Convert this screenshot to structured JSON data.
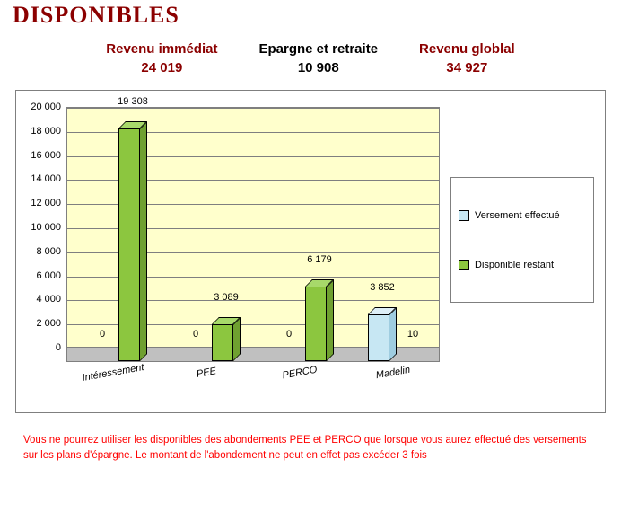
{
  "title": "DISPONIBLES",
  "summary": [
    {
      "label": "Revenu immédiat",
      "value": "24 019",
      "color_class": "red"
    },
    {
      "label": "Epargne et retraite",
      "value": "10 908",
      "color_class": "black"
    },
    {
      "label": "Revenu globlal",
      "value": "34 927",
      "color_class": "red"
    }
  ],
  "chart": {
    "type": "bar",
    "ylim": [
      0,
      20000
    ],
    "ytick_step": 2000,
    "yticks": [
      "0",
      "2 000",
      "4 000",
      "6 000",
      "8 000",
      "10 000",
      "12 000",
      "14 000",
      "16 000",
      "18 000",
      "20 000"
    ],
    "plot_bg": "#ffffcc",
    "grid_color": "#7f7f7f",
    "floor_color": "#c0c0c0",
    "categories": [
      "Intéressement",
      "PEE",
      "PERCO",
      "Madelin"
    ],
    "series": [
      {
        "name": "Versement effectué",
        "color": "#c7e7f3",
        "side_color": "#9fcde0",
        "top_color": "#deeff7",
        "values": [
          0,
          0,
          0,
          3852
        ],
        "labels": [
          "0",
          "0",
          "0",
          "3 852"
        ]
      },
      {
        "name": "Disponible restant",
        "color": "#8cc63f",
        "side_color": "#6fa030",
        "top_color": "#a7d96a",
        "values": [
          19308,
          3089,
          6179,
          10
        ],
        "labels": [
          "19 308",
          "3 089",
          "6 179",
          "10"
        ]
      }
    ],
    "label_fontsize": 11,
    "xlabel_fontsize": 11
  },
  "legend": {
    "items": [
      {
        "swatch": "#c7e7f3",
        "text": "Versement effectué"
      },
      {
        "swatch": "#8cc63f",
        "text": "Disponible restant"
      }
    ]
  },
  "note": "Vous ne pourrez utiliser les disponibles des abondements PEE et PERCO que lorsque vous aurez effectué des versements sur les plans d'épargne. Le montant de l'abondement ne peut en effet pas excéder 3 fois"
}
